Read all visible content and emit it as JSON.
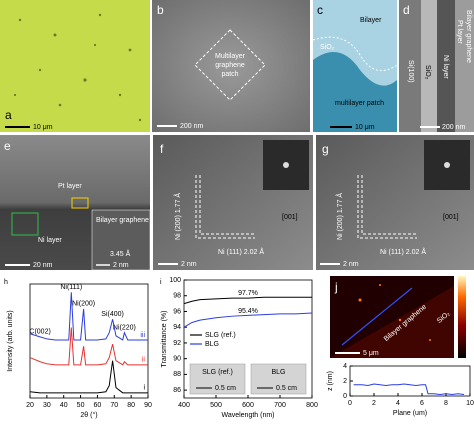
{
  "panels": [
    {
      "label": "a",
      "scale_bar": "10 μm"
    },
    {
      "label": "b",
      "annotation": [
        "Multilayer",
        "graphene",
        "patch"
      ],
      "scale_bar": "200 nm"
    },
    {
      "label": "c",
      "annotations": [
        "Bilayer",
        "SiO₂",
        "multilayer patch"
      ],
      "scale_bar": "10 μm"
    },
    {
      "label": "d",
      "annotations": [
        "Si(100)",
        "SiO₂",
        "Ni layer",
        "Pt layer",
        "Bilayer graphene"
      ],
      "scale_bar": "200 nm"
    },
    {
      "label": "e",
      "annotations": [
        "Pt layer",
        "Ni layer",
        "Bilayer graphene",
        "3.45 Å"
      ],
      "scale_bar": "20 nm",
      "inset_scale_bar": "2 nm"
    },
    {
      "label": "f",
      "annotations": [
        "Ni (200) 1.77 Å",
        "Ni (111) 2.02 Å",
        "[001]"
      ],
      "scale_bar": "2 nm"
    },
    {
      "label": "g",
      "annotations": [
        "Ni (200) 1.77 Å",
        "Ni (111) 2.02 Å",
        "[001]"
      ],
      "scale_bar": "2 nm"
    },
    {
      "label": "j",
      "annotations": [
        "SiO₂",
        "Bilayer graphene"
      ],
      "scale_bar": "5 μm"
    }
  ],
  "charts": [
    {
      "type": "line",
      "label": "h",
      "xlabel": "2θ (°)",
      "ylabel": "Intensity (arb. units)",
      "xlim": [
        20,
        90
      ],
      "xticks": [
        20,
        30,
        40,
        50,
        60,
        70,
        80,
        90
      ],
      "ylim": [
        0,
        11
      ],
      "x": [
        20,
        26,
        30,
        35,
        40,
        43,
        44.5,
        46,
        50,
        51.8,
        53,
        60,
        65,
        67,
        69,
        71,
        75,
        76,
        78,
        85,
        90
      ],
      "series": [
        {
          "name": "i",
          "color": "#000000",
          "values": [
            0.6,
            0.5,
            0.5,
            0.5,
            0.5,
            0.5,
            0.5,
            0.5,
            0.5,
            0.5,
            0.5,
            0.5,
            0.6,
            1.2,
            3.6,
            1.0,
            0.5,
            0.5,
            0.5,
            0.5,
            0.5
          ]
        },
        {
          "name": "ii",
          "color": "#e8312f",
          "values": [
            3.9,
            3.5,
            3.3,
            3.2,
            3.2,
            3.2,
            6.8,
            3.2,
            3.2,
            5.0,
            3.2,
            3.2,
            3.3,
            3.9,
            5.2,
            3.6,
            3.2,
            3.5,
            3.2,
            3.2,
            3.2
          ]
        },
        {
          "name": "iii",
          "color": "#2c3de0",
          "values": [
            6.2,
            5.9,
            5.7,
            5.6,
            5.6,
            5.6,
            10.2,
            5.6,
            5.6,
            8.6,
            5.6,
            5.6,
            5.7,
            6.3,
            7.6,
            6.0,
            5.6,
            6.3,
            5.6,
            5.6,
            5.6
          ]
        }
      ],
      "peaks": [
        {
          "label": "C(002)",
          "x": 26
        },
        {
          "label": "Ni(111)",
          "x": 44.5
        },
        {
          "label": "Ni(200)",
          "x": 51.8
        },
        {
          "label": "Si(400)",
          "x": 69
        },
        {
          "label": "Ni(220)",
          "x": 76
        }
      ]
    },
    {
      "type": "line",
      "label": "i",
      "xlabel": "Wavelength (nm)",
      "ylabel": "Transmittance (%)",
      "xlim": [
        400,
        800
      ],
      "xticks": [
        400,
        500,
        600,
        700,
        800
      ],
      "ylim": [
        85,
        100
      ],
      "yticks": [
        86,
        88,
        90,
        92,
        94,
        96,
        98,
        100
      ],
      "x": [
        400,
        425,
        450,
        500,
        550,
        600,
        650,
        700,
        750,
        800
      ],
      "series": [
        {
          "name": "SLG (ref.)",
          "color": "#000000",
          "values": [
            97.0,
            97.3,
            97.5,
            97.6,
            97.7,
            97.7,
            97.8,
            97.8,
            97.8,
            97.8
          ]
        },
        {
          "name": "BLG",
          "color": "#2c3de0",
          "values": [
            94.0,
            94.6,
            94.9,
            95.2,
            95.4,
            95.5,
            95.6,
            95.7,
            95.7,
            95.8
          ]
        }
      ],
      "annotations": [
        {
          "label": "97.7%",
          "y": 97.7
        },
        {
          "label": "95.4%",
          "y": 95.4
        }
      ],
      "legend": "center left",
      "insets": [
        {
          "label": "SLG (ref.)",
          "scale_bar": "0.5 cm"
        },
        {
          "label": "BLG",
          "scale_bar": "0.5 cm"
        }
      ]
    },
    {
      "type": "line",
      "xlabel": "Plane (um)",
      "ylabel": "z (nm)",
      "xlim": [
        0,
        10
      ],
      "xticks": [
        0,
        2,
        4,
        6,
        8,
        10
      ],
      "ylim": [
        0,
        4
      ],
      "yticks": [
        0,
        2,
        4
      ],
      "x": [
        0.3,
        1,
        1.5,
        2,
        2.5,
        3,
        3.5,
        4,
        4.5,
        5,
        5.5,
        6,
        6.3,
        6.5,
        7,
        7.5,
        8,
        8.5,
        9,
        9.5
      ],
      "series": [
        {
          "color": "#2c3de0",
          "values": [
            1.5,
            1.5,
            1.4,
            1.6,
            1.5,
            1.4,
            1.5,
            1.5,
            1.6,
            1.5,
            1.4,
            1.5,
            1.5,
            0.3,
            0.3,
            0.2,
            0.3,
            0.2,
            0.3,
            0.2
          ]
        }
      ]
    }
  ]
}
